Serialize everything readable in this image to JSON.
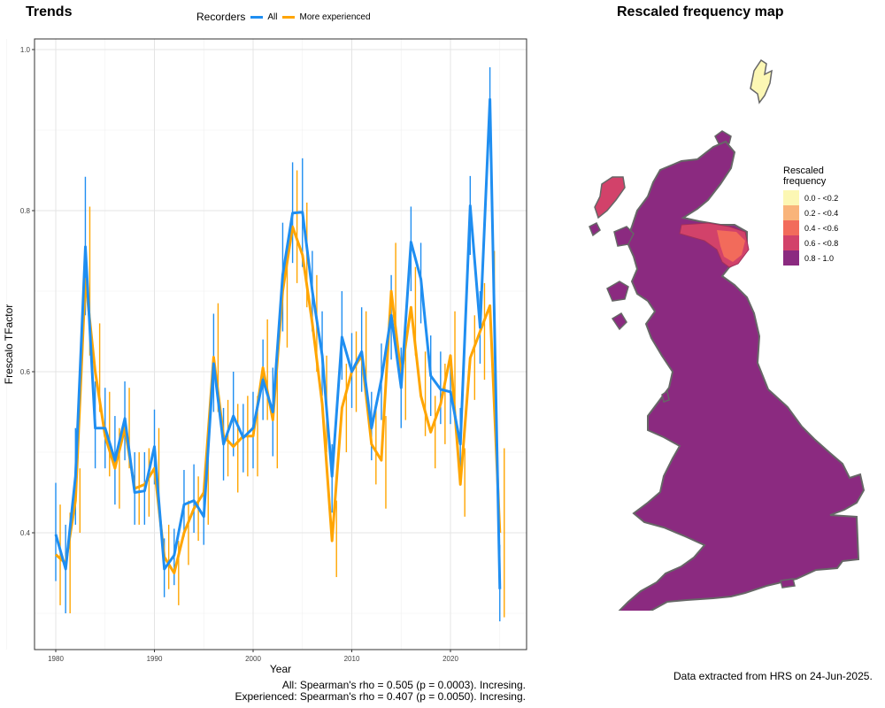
{
  "left_title": "Trends",
  "right_title": "Rescaled frequency map",
  "legend": {
    "title": "Recorders",
    "items": [
      {
        "label": "All",
        "color": "#1f8ef1"
      },
      {
        "label": "More experienced",
        "color": "#ffa500"
      }
    ]
  },
  "stats": {
    "line1": "All: Spearman's rho = 0.505 (p = 0.0003). Incresing.",
    "line2": "Experienced: Spearman's rho = 0.407 (p = 0.0050). Incresing."
  },
  "caption": "Data extracted from HRS on 24-Jun-2025.",
  "map_legend": {
    "title_line1": "Rescaled",
    "title_line2": "frequency",
    "items": [
      {
        "label": "0.0 - <0.2",
        "color": "#fcf7b4"
      },
      {
        "label": "0.2 - <0.4",
        "color": "#f9b47a"
      },
      {
        "label": "0.4 - <0.6",
        "color": "#f26b5b"
      },
      {
        "label": "0.6 - <0.8",
        "color": "#d2426a"
      },
      {
        "label": "0.8 - 1.0",
        "color": "#8b2a80"
      }
    ]
  },
  "chart_data": {
    "type": "line",
    "xlabel": "Year",
    "ylabel": "Frescalo TFactor",
    "xlim": [
      1978.7,
      1979.4
    ],
    "x_ticks": [
      1980,
      1990,
      2000,
      2010,
      2020
    ],
    "y_ticks": [
      0.4,
      0.6,
      0.8,
      1.0
    ],
    "y_tick_labels": [
      "0.4",
      "0.6",
      "0.8",
      "1.0"
    ],
    "x_tick_labels": [
      "1980",
      "1990",
      "2000",
      "2010",
      "2020"
    ],
    "ylim": [
      0.27,
      1.015
    ],
    "grid": true,
    "series": [
      {
        "name": "All",
        "color": "#1f8ef1",
        "points": [
          [
            1980,
            0.398,
            0.34,
            0.462
          ],
          [
            1981,
            0.355,
            0.3,
            0.41
          ],
          [
            1982,
            0.47,
            0.41,
            0.53
          ],
          [
            1983,
            0.755,
            0.67,
            0.842
          ],
          [
            1984,
            0.53,
            0.48,
            0.588
          ],
          [
            1985,
            0.53,
            0.48,
            0.58
          ],
          [
            1986,
            0.49,
            0.435,
            0.545
          ],
          [
            1987,
            0.542,
            0.49,
            0.588
          ],
          [
            1988,
            0.45,
            0.41,
            0.5
          ],
          [
            1989,
            0.452,
            0.41,
            0.5
          ],
          [
            1990,
            0.507,
            0.46,
            0.553
          ],
          [
            1991,
            0.355,
            0.32,
            0.393
          ],
          [
            1992,
            0.372,
            0.335,
            0.405
          ],
          [
            1993,
            0.435,
            0.395,
            0.478
          ],
          [
            1994,
            0.44,
            0.4,
            0.485
          ],
          [
            1995,
            0.42,
            0.385,
            0.462
          ],
          [
            1996,
            0.61,
            0.55,
            0.672
          ],
          [
            1997,
            0.51,
            0.465,
            0.555
          ],
          [
            1998,
            0.545,
            0.495,
            0.6
          ],
          [
            1999,
            0.518,
            0.475,
            0.56
          ],
          [
            2000,
            0.53,
            0.48,
            0.575
          ],
          [
            2001,
            0.59,
            0.54,
            0.64
          ],
          [
            2002,
            0.55,
            0.495,
            0.605
          ],
          [
            2003,
            0.72,
            0.65,
            0.785
          ],
          [
            2004,
            0.797,
            0.735,
            0.86
          ],
          [
            2005,
            0.798,
            0.73,
            0.865
          ],
          [
            2006,
            0.7,
            0.65,
            0.75
          ],
          [
            2007,
            0.62,
            0.57,
            0.675
          ],
          [
            2008,
            0.47,
            0.425,
            0.51
          ],
          [
            2009,
            0.643,
            0.59,
            0.7
          ],
          [
            2010,
            0.6,
            0.555,
            0.648
          ],
          [
            2011,
            0.625,
            0.575,
            0.68
          ],
          [
            2012,
            0.53,
            0.49,
            0.575
          ],
          [
            2013,
            0.59,
            0.54,
            0.635
          ],
          [
            2014,
            0.67,
            0.615,
            0.72
          ],
          [
            2015,
            0.58,
            0.53,
            0.63
          ],
          [
            2016,
            0.761,
            0.7,
            0.805
          ],
          [
            2017,
            0.715,
            0.66,
            0.76
          ],
          [
            2018,
            0.595,
            0.545,
            0.645
          ],
          [
            2019,
            0.578,
            0.535,
            0.625
          ],
          [
            2020,
            0.575,
            0.535,
            0.62
          ],
          [
            2021,
            0.51,
            0.47,
            0.555
          ],
          [
            2022,
            0.806,
            0.745,
            0.843
          ],
          [
            2023,
            0.655,
            0.61,
            0.7
          ],
          [
            2024,
            0.938,
            0.895,
            0.978
          ],
          [
            2025,
            0.33,
            0.29,
            0.385
          ]
        ]
      },
      {
        "name": "More experienced",
        "color": "#ffa500",
        "points": [
          [
            1980,
            0.373,
            0.31,
            0.435
          ],
          [
            1981,
            0.362,
            0.3,
            0.425
          ],
          [
            1982,
            0.44,
            0.4,
            0.48
          ],
          [
            1983,
            0.715,
            0.62,
            0.805
          ],
          [
            1984,
            0.6,
            0.55,
            0.66
          ],
          [
            1985,
            0.52,
            0.47,
            0.575
          ],
          [
            1986,
            0.48,
            0.43,
            0.53
          ],
          [
            1987,
            0.53,
            0.48,
            0.58
          ],
          [
            1988,
            0.455,
            0.41,
            0.5
          ],
          [
            1989,
            0.46,
            0.42,
            0.505
          ],
          [
            1990,
            0.48,
            0.43,
            0.53
          ],
          [
            1991,
            0.37,
            0.33,
            0.41
          ],
          [
            1992,
            0.35,
            0.31,
            0.39
          ],
          [
            1993,
            0.4,
            0.36,
            0.44
          ],
          [
            1994,
            0.43,
            0.39,
            0.47
          ],
          [
            1995,
            0.45,
            0.41,
            0.495
          ],
          [
            1996,
            0.618,
            0.55,
            0.685
          ],
          [
            1997,
            0.52,
            0.47,
            0.565
          ],
          [
            1998,
            0.507,
            0.45,
            0.56
          ],
          [
            1999,
            0.52,
            0.47,
            0.57
          ],
          [
            2000,
            0.52,
            0.47,
            0.57
          ],
          [
            2001,
            0.605,
            0.54,
            0.665
          ],
          [
            2002,
            0.54,
            0.48,
            0.6
          ],
          [
            2003,
            0.7,
            0.63,
            0.76
          ],
          [
            2004,
            0.78,
            0.71,
            0.85
          ],
          [
            2005,
            0.745,
            0.68,
            0.81
          ],
          [
            2006,
            0.66,
            0.6,
            0.72
          ],
          [
            2007,
            0.56,
            0.5,
            0.62
          ],
          [
            2008,
            0.39,
            0.345,
            0.44
          ],
          [
            2009,
            0.555,
            0.5,
            0.61
          ],
          [
            2010,
            0.6,
            0.55,
            0.65
          ],
          [
            2011,
            0.62,
            0.57,
            0.675
          ],
          [
            2012,
            0.51,
            0.46,
            0.56
          ],
          [
            2013,
            0.49,
            0.43,
            0.545
          ],
          [
            2014,
            0.7,
            0.64,
            0.76
          ],
          [
            2015,
            0.595,
            0.54,
            0.65
          ],
          [
            2016,
            0.68,
            0.62,
            0.73
          ],
          [
            2017,
            0.57,
            0.52,
            0.625
          ],
          [
            2018,
            0.525,
            0.48,
            0.57
          ],
          [
            2019,
            0.56,
            0.51,
            0.61
          ],
          [
            2020,
            0.62,
            0.56,
            0.675
          ],
          [
            2021,
            0.46,
            0.42,
            0.505
          ],
          [
            2022,
            0.617,
            0.565,
            0.67
          ],
          [
            2023,
            0.65,
            0.59,
            0.71
          ],
          [
            2024,
            0.682,
            0.615,
            0.75
          ],
          [
            2025,
            0.4,
            0.295,
            0.505
          ]
        ]
      }
    ]
  }
}
